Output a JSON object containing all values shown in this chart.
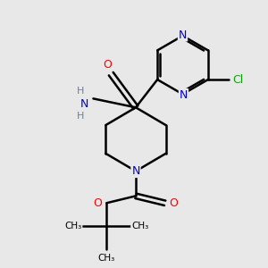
{
  "background_color": "#e8e8e8",
  "atom_colors": {
    "N": "#0000dd",
    "O": "#ff0000",
    "Cl": "#00aa00",
    "C": "#000000",
    "H": "#708090"
  },
  "figsize": [
    3.0,
    3.0
  ],
  "dpi": 100,
  "xlim": [
    0,
    3
  ],
  "ylim": [
    0,
    3
  ]
}
